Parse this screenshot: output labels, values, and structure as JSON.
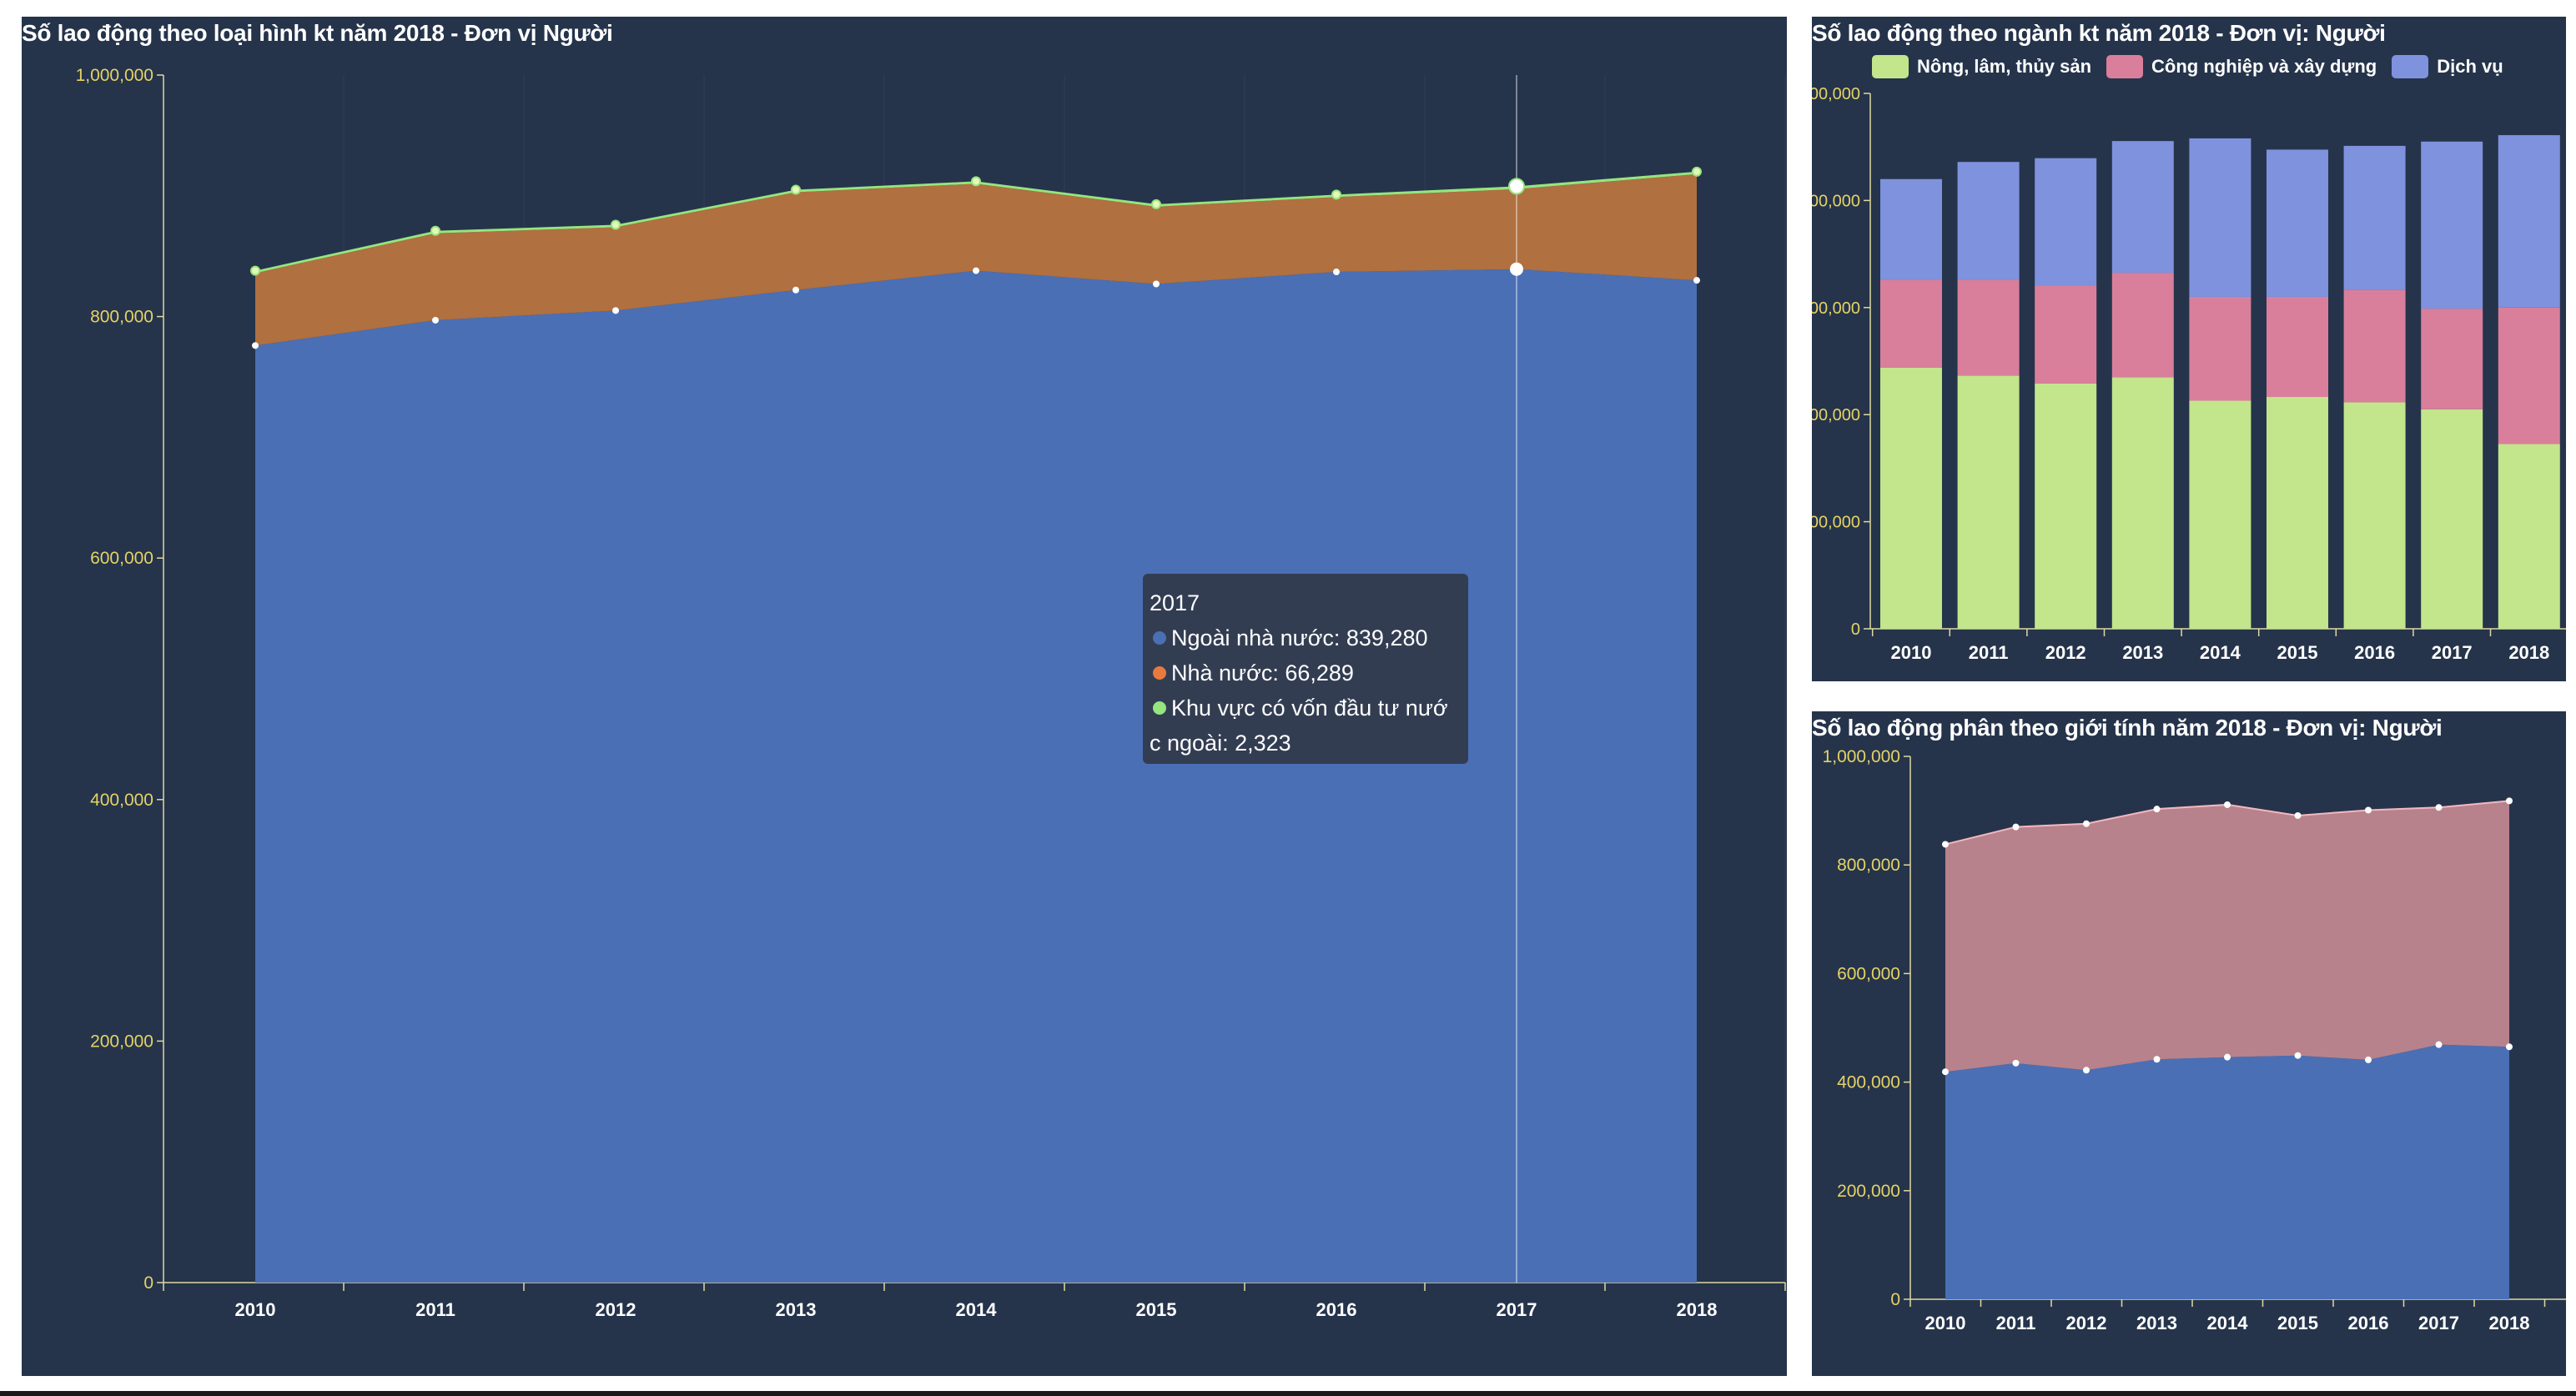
{
  "colors": {
    "panel_bg": "#25344b",
    "axis_tick_text": "#e5d266",
    "axis_line": "#e0d9a0",
    "ngoai_nha_nuoc": "#4a6fb5",
    "nha_nuoc": "#b07040",
    "fdi": "#95e67e",
    "nong_lam": "#c3e58c",
    "cong_nghiep": "#d97f9b",
    "dich_vu": "#7f92dd",
    "male_area": "#c98b93",
    "female_area": "#4a6fb5"
  },
  "tooltip": {
    "year": "2017",
    "row1": "Ngoài nhà nước: 839,280",
    "row2": "Nhà nước: 66,289",
    "row3": "Khu vực có vốn đầu tư nướ",
    "row3b": "c ngoài: 2,323"
  },
  "chart_data": [
    {
      "type": "area",
      "stacked": true,
      "title": "Số lao động theo loại hình kt năm 2018 - Đơn vị Người",
      "x": [
        "2010",
        "2011",
        "2012",
        "2013",
        "2014",
        "2015",
        "2016",
        "2017",
        "2018"
      ],
      "ylim": [
        0,
        1000000
      ],
      "yticks": [
        "0",
        "200,000",
        "400,000",
        "600,000",
        "800,000",
        "1,000,000"
      ],
      "series": [
        {
          "name": "Ngoài nhà nước",
          "values": [
            776000,
            797000,
            805000,
            822000,
            838000,
            827000,
            837000,
            839280,
            830000
          ]
        },
        {
          "name": "Nhà nước",
          "values": [
            60000,
            72000,
            69000,
            81000,
            72000,
            64000,
            62000,
            66289,
            88000
          ]
        },
        {
          "name": "Khu vực có vốn đầu tư nước ngoài",
          "values": [
            2000,
            2000,
            2000,
            2000,
            2000,
            2000,
            2000,
            2323,
            2000
          ]
        }
      ],
      "highlight": "2017",
      "grid": true,
      "legend": "none"
    },
    {
      "type": "bar",
      "stacked": true,
      "title": "Số lao động theo ngành kt năm 2018 - Đơn vị: Người",
      "categories": [
        "2010",
        "2011",
        "2012",
        "2013",
        "2014",
        "2015",
        "2016",
        "2017",
        "2018"
      ],
      "ylim": [
        0,
        1000000
      ],
      "yticks": [
        "0",
        "00,000",
        "00,000",
        "00,000",
        "00,000",
        "00,000"
      ],
      "series": [
        {
          "name": "Nông, lâm, thủy sản",
          "values": [
            488000,
            473000,
            458000,
            470000,
            426000,
            433000,
            423000,
            410000,
            345000
          ]
        },
        {
          "name": "Công nghiệp và xây dựng",
          "values": [
            164000,
            179000,
            183000,
            195000,
            194000,
            187000,
            210000,
            188000,
            255000
          ]
        },
        {
          "name": "Dịch vụ",
          "values": [
            188000,
            220000,
            238000,
            246000,
            296000,
            275000,
            269000,
            312000,
            322000
          ]
        }
      ],
      "legend": "top"
    },
    {
      "type": "area",
      "stacked": true,
      "title": "Số lao động phân theo giới tính năm 2018 - Đơn vị: Người",
      "x": [
        "2010",
        "2011",
        "2012",
        "2013",
        "2014",
        "2015",
        "2016",
        "2017",
        "2018"
      ],
      "ylim": [
        0,
        1000000
      ],
      "yticks": [
        "0",
        "200,000",
        "400,000",
        "600,000",
        "800,000",
        "1,000,000"
      ],
      "series": [
        {
          "values": [
            419000,
            435000,
            422000,
            442000,
            446000,
            449000,
            441000,
            469000,
            465000
          ]
        },
        {
          "values": [
            419000,
            435000,
            454000,
            461000,
            465000,
            442000,
            460000,
            437000,
            453000
          ]
        }
      ],
      "legend": "none"
    }
  ]
}
